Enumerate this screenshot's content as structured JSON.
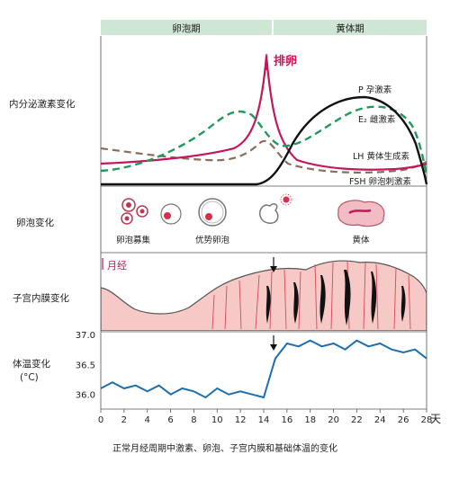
{
  "phases": {
    "follicular": "卵泡期",
    "luteal": "黄体期"
  },
  "row_labels": {
    "hormones": "内分泌激素变化",
    "follicle": "卵泡变化",
    "endometrium": "子宫内膜变化",
    "temperature_line1": "体温变化",
    "temperature_line2": "(°C)"
  },
  "annotations": {
    "ovulation": "排卵",
    "menstruation": "月经"
  },
  "hormone_labels": {
    "progesterone": "P 孕激素",
    "estrogen": "E₂ 雌激素",
    "lh": "LH 黄体生成素",
    "fsh": "FSH 卵泡刺激素"
  },
  "follicle_labels": {
    "recruitment": "卵泡募集",
    "dominant": "优势卵泡",
    "corpus_luteum": "黄体"
  },
  "colors": {
    "phase_bar": "#cfe6d4",
    "estrogen": "#1f9a5a",
    "lh": "#c2185b",
    "fsh": "#8a6d5a",
    "progesterone": "#111111",
    "temperature": "#1e6fae",
    "endometrium": "#f6c9c6",
    "vessel": "#d44a5a"
  },
  "x_axis": {
    "ticks": [
      "0",
      "2",
      "4",
      "6",
      "8",
      "10",
      "12",
      "14",
      "16",
      "18",
      "20",
      "22",
      "24",
      "26",
      "28"
    ],
    "unit": "天"
  },
  "chart_data": {
    "type": "line",
    "xlabel": "天",
    "ylabel": "",
    "ylim": [
      35.8,
      37.0
    ],
    "yticks": [
      "37.0",
      "36.5",
      "36.0"
    ],
    "x": [
      0,
      1,
      2,
      3,
      4,
      5,
      6,
      7,
      8,
      9,
      10,
      11,
      12,
      13,
      14,
      15,
      16,
      17,
      18,
      19,
      20,
      21,
      22,
      23,
      24,
      25,
      26,
      27,
      28
    ],
    "series": [
      {
        "values": [
          36.1,
          36.2,
          36.1,
          36.15,
          36.05,
          36.15,
          36.0,
          36.1,
          36.05,
          35.95,
          36.1,
          36.0,
          36.05,
          36.0,
          35.95,
          36.6,
          36.85,
          36.8,
          36.9,
          36.8,
          36.85,
          36.75,
          36.9,
          36.8,
          36.85,
          36.75,
          36.7,
          36.75,
          36.6
        ]
      }
    ]
  },
  "caption": "正常月经周期中激素、卵泡、子宫内膜和基础体温的变化"
}
